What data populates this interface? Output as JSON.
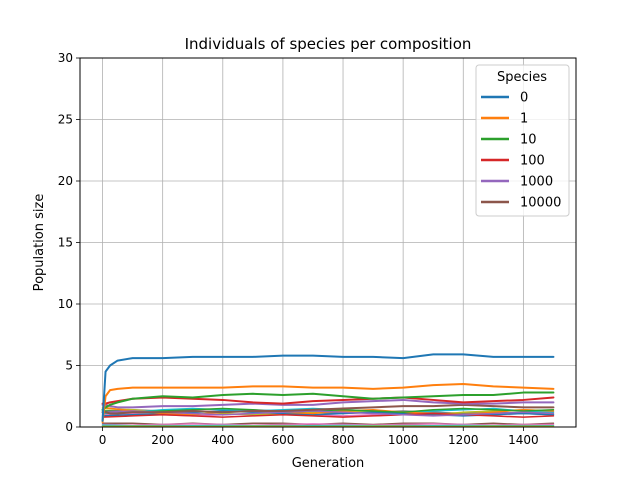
{
  "chart_data": {
    "type": "line",
    "title": "Individuals of species per composition",
    "xlabel": "Generation",
    "ylabel": "Population size",
    "xlim": [
      -75,
      1575
    ],
    "ylim": [
      0,
      30
    ],
    "xticks": [
      0,
      200,
      400,
      600,
      800,
      1000,
      1200,
      1400
    ],
    "yticks": [
      0,
      5,
      10,
      15,
      20,
      25,
      30
    ],
    "grid": true,
    "legend": {
      "title": "Species",
      "placement": "top-right"
    },
    "series": [
      {
        "name": "0",
        "color": "#1f77b4",
        "x": [
          0,
          10,
          25,
          50,
          100,
          200,
          300,
          400,
          500,
          600,
          700,
          800,
          900,
          1000,
          1100,
          1200,
          1300,
          1400,
          1500
        ],
        "y": [
          0.5,
          4.5,
          5.0,
          5.4,
          5.6,
          5.6,
          5.7,
          5.7,
          5.7,
          5.8,
          5.8,
          5.7,
          5.7,
          5.6,
          5.9,
          5.9,
          5.7,
          5.7,
          5.7
        ]
      },
      {
        "name": "1",
        "color": "#ff7f0e",
        "x": [
          0,
          10,
          25,
          50,
          100,
          200,
          300,
          400,
          500,
          600,
          700,
          800,
          900,
          1000,
          1100,
          1200,
          1300,
          1400,
          1500
        ],
        "y": [
          0.4,
          2.5,
          3.0,
          3.1,
          3.2,
          3.2,
          3.2,
          3.2,
          3.3,
          3.3,
          3.2,
          3.2,
          3.1,
          3.2,
          3.4,
          3.5,
          3.3,
          3.2,
          3.1
        ]
      },
      {
        "name": "10",
        "color": "#2ca02c",
        "x": [
          0,
          10,
          25,
          50,
          100,
          200,
          300,
          400,
          500,
          600,
          700,
          800,
          900,
          1000,
          1100,
          1200,
          1300,
          1400,
          1500
        ],
        "y": [
          1.4,
          1.6,
          1.8,
          2.0,
          2.3,
          2.5,
          2.4,
          2.6,
          2.7,
          2.6,
          2.7,
          2.5,
          2.3,
          2.4,
          2.5,
          2.6,
          2.6,
          2.8,
          2.8
        ]
      },
      {
        "name": "100",
        "color": "#d62728",
        "x": [
          0,
          10,
          25,
          50,
          100,
          200,
          300,
          400,
          500,
          600,
          700,
          800,
          900,
          1000,
          1100,
          1200,
          1300,
          1400,
          1500
        ],
        "y": [
          1.9,
          1.9,
          2.0,
          2.1,
          2.3,
          2.4,
          2.3,
          2.2,
          2.0,
          1.9,
          2.1,
          2.2,
          2.3,
          2.4,
          2.2,
          2.0,
          2.1,
          2.2,
          2.4
        ]
      },
      {
        "name": "1000",
        "color": "#9467bd",
        "x": [
          0,
          10,
          25,
          50,
          100,
          200,
          300,
          400,
          500,
          600,
          700,
          800,
          900,
          1000,
          1100,
          1200,
          1300,
          1400,
          1500
        ],
        "y": [
          1.8,
          1.8,
          1.7,
          1.6,
          1.6,
          1.7,
          1.7,
          1.8,
          1.9,
          1.8,
          1.8,
          2.0,
          2.1,
          2.2,
          2.0,
          1.9,
          1.9,
          2.0,
          2.0
        ]
      },
      {
        "name": "10000",
        "color": "#8c564b",
        "x": [
          0,
          10,
          25,
          50,
          100,
          200,
          300,
          400,
          500,
          600,
          700,
          800,
          900,
          1000,
          1100,
          1200,
          1300,
          1400,
          1500
        ],
        "y": [
          1.2,
          1.2,
          1.1,
          1.1,
          1.2,
          1.2,
          1.3,
          1.2,
          1.3,
          1.3,
          1.4,
          1.5,
          1.6,
          1.7,
          1.7,
          1.8,
          1.7,
          1.6,
          1.6
        ]
      },
      {
        "color": "#e377c2",
        "x": [
          0,
          100,
          200,
          300,
          400,
          500,
          600,
          700,
          800,
          900,
          1000,
          1100,
          1200,
          1300,
          1400,
          1500
        ],
        "y": [
          1.0,
          1.1,
          1.0,
          0.9,
          1.0,
          1.1,
          1.2,
          1.0,
          0.9,
          1.0,
          1.1,
          1.2,
          1.1,
          1.0,
          1.1,
          1.2
        ]
      },
      {
        "color": "#7f7f7f",
        "x": [
          0,
          100,
          200,
          300,
          400,
          500,
          600,
          700,
          800,
          900,
          1000,
          1100,
          1200,
          1300,
          1400,
          1500
        ],
        "y": [
          1.3,
          1.4,
          1.3,
          1.2,
          1.3,
          1.4,
          1.3,
          1.2,
          1.1,
          1.2,
          1.3,
          1.2,
          1.1,
          1.2,
          1.1,
          1.0
        ]
      },
      {
        "color": "#bcbd22",
        "x": [
          0,
          100,
          200,
          300,
          400,
          500,
          600,
          700,
          800,
          900,
          1000,
          1100,
          1200,
          1300,
          1400,
          1500
        ],
        "y": [
          1.5,
          1.4,
          1.2,
          1.3,
          1.1,
          1.0,
          1.1,
          1.2,
          1.3,
          1.2,
          1.1,
          1.0,
          1.2,
          1.3,
          1.4,
          1.3
        ]
      },
      {
        "color": "#17becf",
        "x": [
          0,
          100,
          200,
          300,
          400,
          500,
          600,
          700,
          800,
          900,
          1000,
          1100,
          1200,
          1300,
          1400,
          1500
        ],
        "y": [
          1.1,
          1.2,
          1.4,
          1.5,
          1.4,
          1.3,
          1.4,
          1.5,
          1.4,
          1.3,
          1.2,
          1.3,
          1.4,
          1.5,
          1.3,
          1.2
        ]
      },
      {
        "color": "#1f77b4",
        "x": [
          0,
          100,
          200,
          300,
          400,
          500,
          600,
          700,
          800,
          900,
          1000,
          1100,
          1200,
          1300,
          1400,
          1500
        ],
        "y": [
          0.9,
          1.0,
          1.1,
          1.2,
          1.3,
          1.2,
          1.1,
          1.0,
          1.1,
          1.2,
          1.1,
          1.0,
          0.9,
          1.0,
          1.1,
          1.0
        ]
      },
      {
        "color": "#ff7f0e",
        "x": [
          0,
          100,
          200,
          300,
          400,
          500,
          600,
          700,
          800,
          900,
          1000,
          1100,
          1200,
          1300,
          1400,
          1500
        ],
        "y": [
          1.6,
          1.3,
          1.1,
          1.0,
          1.2,
          1.3,
          1.2,
          1.1,
          1.3,
          1.4,
          1.2,
          1.1,
          1.0,
          1.2,
          1.4,
          1.3
        ]
      },
      {
        "color": "#2ca02c",
        "x": [
          0,
          100,
          200,
          300,
          400,
          500,
          600,
          700,
          800,
          900,
          1000,
          1100,
          1200,
          1300,
          1400,
          1500
        ],
        "y": [
          1.3,
          1.2,
          1.3,
          1.4,
          1.5,
          1.4,
          1.2,
          1.3,
          1.4,
          1.3,
          1.2,
          1.4,
          1.5,
          1.4,
          1.3,
          1.4
        ]
      },
      {
        "color": "#d62728",
        "x": [
          0,
          100,
          200,
          300,
          400,
          500,
          600,
          700,
          800,
          900,
          1000,
          1100,
          1200,
          1300,
          1400,
          1500
        ],
        "y": [
          0.8,
          0.9,
          1.0,
          0.9,
          0.8,
          0.9,
          1.0,
          0.9,
          0.8,
          0.9,
          1.0,
          1.1,
          1.0,
          0.9,
          0.8,
          0.9
        ]
      },
      {
        "color": "#9467bd",
        "x": [
          0,
          100,
          200,
          300,
          400,
          500,
          600,
          700,
          800,
          900,
          1000,
          1100,
          1200,
          1300,
          1400,
          1500
        ],
        "y": [
          1.2,
          1.3,
          1.2,
          1.1,
          1.0,
          1.1,
          1.2,
          1.3,
          1.2,
          1.1,
          1.0,
          0.9,
          1.0,
          1.1,
          1.2,
          1.1
        ]
      },
      {
        "color": "#8c564b",
        "x": [
          0,
          100,
          200,
          300,
          400,
          500,
          600,
          700,
          800,
          900,
          1000,
          1100,
          1200,
          1300,
          1400,
          1500
        ],
        "y": [
          0.3,
          0.3,
          0.2,
          0.3,
          0.2,
          0.3,
          0.3,
          0.2,
          0.3,
          0.2,
          0.3,
          0.3,
          0.2,
          0.3,
          0.2,
          0.3
        ]
      },
      {
        "color": "#e377c2",
        "x": [
          0,
          100,
          200,
          300,
          400,
          500,
          600,
          700,
          800,
          900,
          1000,
          1100,
          1200,
          1300,
          1400,
          1500
        ],
        "y": [
          0.2,
          0.15,
          0.2,
          0.25,
          0.2,
          0.15,
          0.2,
          0.25,
          0.2,
          0.15,
          0.2,
          0.25,
          0.2,
          0.15,
          0.2,
          0.2
        ]
      },
      {
        "color": "#7f7f7f",
        "x": [
          0,
          100,
          200,
          300,
          400,
          500,
          600,
          700,
          800,
          900,
          1000,
          1100,
          1200,
          1300,
          1400,
          1500
        ],
        "y": [
          0.1,
          0.1,
          0.12,
          0.1,
          0.08,
          0.1,
          0.12,
          0.1,
          0.08,
          0.1,
          0.12,
          0.1,
          0.08,
          0.1,
          0.12,
          0.1
        ]
      },
      {
        "color": "#17becf",
        "x": [
          0,
          100,
          200,
          300,
          400,
          500,
          600,
          700,
          800,
          900,
          1000,
          1100,
          1200,
          1300,
          1400,
          1500
        ],
        "y": [
          0.15,
          0.1,
          0.08,
          0.1,
          0.12,
          0.1,
          0.08,
          0.1,
          0.12,
          0.1,
          0.08,
          0.1,
          0.12,
          0.1,
          0.08,
          0.1
        ]
      },
      {
        "color": "#bcbd22",
        "x": [
          0,
          100,
          200,
          300,
          400,
          500,
          600,
          700,
          800,
          900,
          1000,
          1100,
          1200,
          1300,
          1400,
          1500
        ],
        "y": [
          0.05,
          0.06,
          0.05,
          0.04,
          0.05,
          0.06,
          0.05,
          0.04,
          0.05,
          0.06,
          0.05,
          0.04,
          0.05,
          0.06,
          0.05,
          0.05
        ]
      }
    ]
  }
}
